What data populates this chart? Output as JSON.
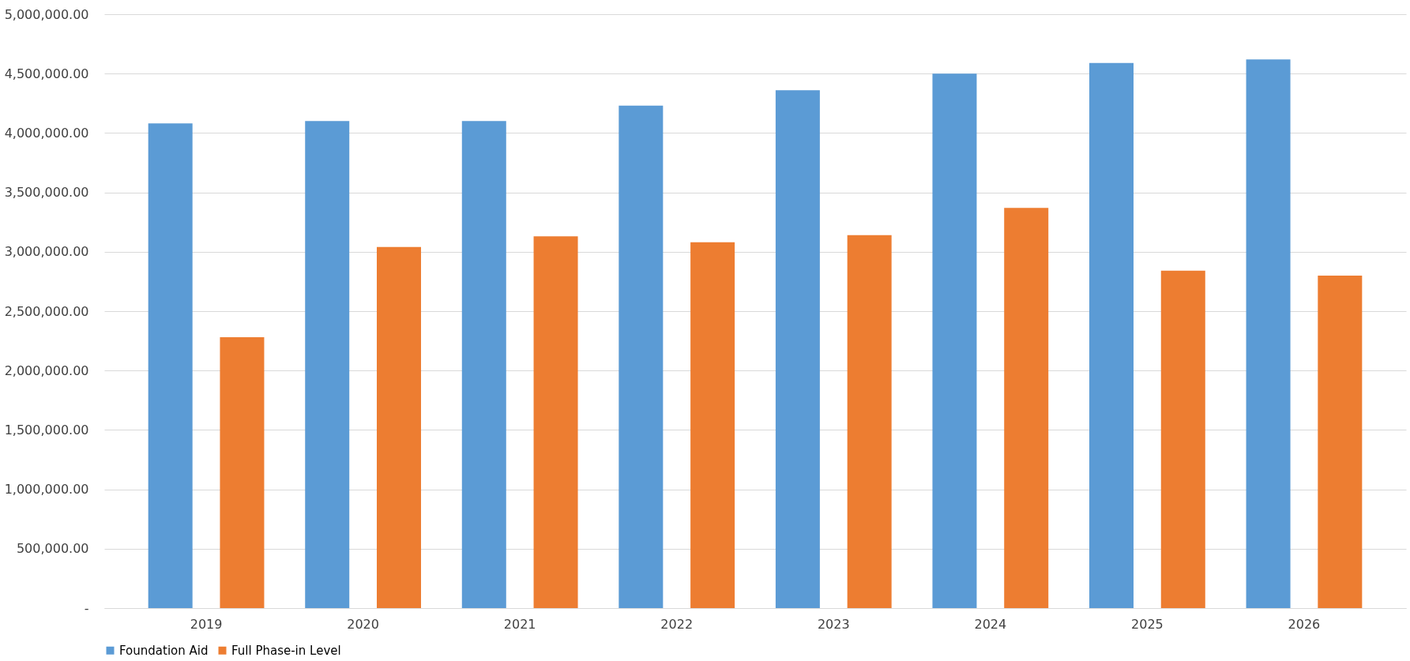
{
  "chart_data": {
    "type": "bar",
    "categories": [
      "2019",
      "2020",
      "2021",
      "2022",
      "2023",
      "2024",
      "2025",
      "2026"
    ],
    "series": [
      {
        "name": "Foundation Aid",
        "color": "#5b9bd5",
        "values": [
          4080000,
          4100000,
          4100000,
          4230000,
          4360000,
          4500000,
          4590000,
          4620000
        ]
      },
      {
        "name": "Full Phase-in Level",
        "color": "#ed7d31",
        "values": [
          2280000,
          3040000,
          3130000,
          3080000,
          3140000,
          3370000,
          2840000,
          2800000
        ]
      }
    ],
    "ylim": [
      0,
      5000000
    ],
    "yticks": [
      {
        "value": 0,
        "label": "-"
      },
      {
        "value": 500000,
        "label": "500,000.00"
      },
      {
        "value": 1000000,
        "label": "1,000,000.00"
      },
      {
        "value": 1500000,
        "label": "1,500,000.00"
      },
      {
        "value": 2000000,
        "label": "2,000,000.00"
      },
      {
        "value": 2500000,
        "label": "2,500,000.00"
      },
      {
        "value": 3000000,
        "label": "3,000,000.00"
      },
      {
        "value": 3500000,
        "label": "3,500,000.00"
      },
      {
        "value": 4000000,
        "label": "4,000,000.00"
      },
      {
        "value": 4500000,
        "label": "4,500,000.00"
      },
      {
        "value": 5000000,
        "label": "5,000,000.00"
      }
    ],
    "grid": "y",
    "legend": "bottom"
  }
}
